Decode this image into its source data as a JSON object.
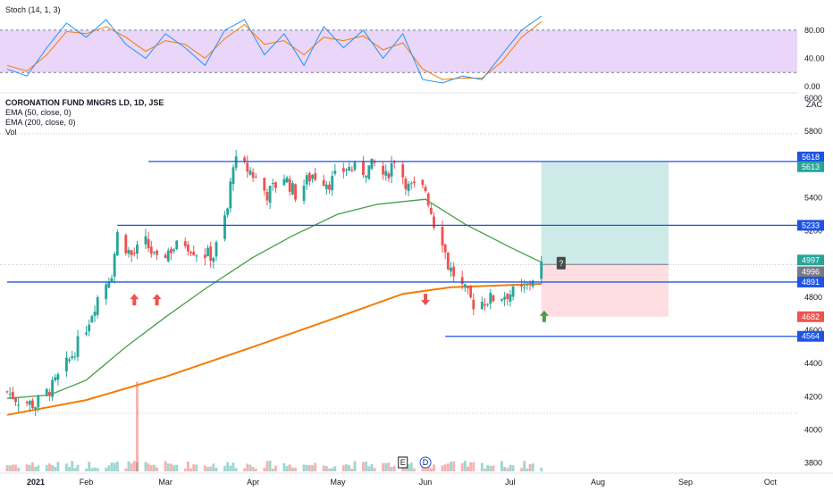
{
  "stoch_panel": {
    "indicator_label": "Stoch (14, 1, 3)",
    "band_top": 80,
    "band_bottom": 20,
    "ticks": [
      "80.00",
      "40.00",
      "0.00"
    ],
    "tick_values": [
      80,
      40,
      0
    ],
    "band_color": "#e1c8f7",
    "k_color": "#2196f3",
    "d_color": "#f57c00"
  },
  "price_panel": {
    "symbol_line": "CORONATION FUND MNGRS LD, 1D, JSE",
    "ema50_label": "EMA (50, close, 0)",
    "ema200_label": "EMA (200, close, 0)",
    "vol_label": "Vol",
    "currency": "ZAC",
    "up_color": "#26a69a",
    "down_color": "#ef5350",
    "ema50_color": "#43a047",
    "ema200_color": "#f57c00",
    "level_color": "#1e53e5",
    "right_tags": [
      {
        "text": "5618",
        "value": 5618,
        "color": "#1e53e5"
      },
      {
        "text": "5613",
        "value": 5613,
        "color": "#26a69a"
      },
      {
        "text": "5233",
        "value": 5233,
        "color": "#1e53e5"
      },
      {
        "text": "4997",
        "value": 4997,
        "color": "#26a69a"
      },
      {
        "text": "4996",
        "value": 4996,
        "color": "#787b86"
      },
      {
        "text": "4891",
        "value": 4891,
        "color": "#1e53e5"
      },
      {
        "text": "4682",
        "value": 4682,
        "color": "#ef5350"
      },
      {
        "text": "4564",
        "value": 4564,
        "color": "#1e53e5"
      }
    ],
    "badge_text": "?",
    "events": [
      "E",
      "D"
    ]
  },
  "chart_data": {
    "type": "candlestick",
    "price_axis": {
      "ticks": [
        "6000",
        "5800",
        "5400",
        "5200",
        "4800",
        "4600",
        "4400",
        "4200",
        "4000",
        "3800"
      ],
      "tick_values": [
        6000,
        5800,
        5400,
        5200,
        4800,
        4600,
        4400,
        4200,
        4000,
        3800
      ],
      "range": [
        3750,
        6010
      ]
    },
    "time_axis": {
      "labels": [
        "2021",
        "Feb",
        "Mar",
        "Apr",
        "May",
        "Jun",
        "Jul",
        "Aug",
        "Sep",
        "Oct"
      ],
      "range": [
        "2021-01-04",
        "2021-10-08"
      ]
    },
    "horizontal_levels": [
      {
        "value": 5618,
        "from": "2021-02-23"
      },
      {
        "value": 5233,
        "from": "2021-02-12"
      },
      {
        "value": 4891,
        "from": "2021-01-04"
      },
      {
        "value": 4564,
        "from": "2021-06-08"
      }
    ],
    "position": {
      "entry": 4997,
      "target": 5613,
      "stop": 4682,
      "start": "2021-07-12",
      "end": "2021-08-26"
    },
    "markers": [
      {
        "date": "2021-02-18",
        "direction": "up",
        "color": "#ef5350"
      },
      {
        "date": "2021-02-26",
        "direction": "up",
        "color": "#ef5350"
      },
      {
        "date": "2021-06-01",
        "direction": "down",
        "color": "#ef5350"
      },
      {
        "date": "2021-07-13",
        "direction": "up",
        "color": "#43a047"
      }
    ],
    "volume_spike": {
      "date": "2021-02-19",
      "relative": 1.0
    },
    "path_points": [
      [
        "2021-01-04",
        4230
      ],
      [
        "2021-01-08",
        4180
      ],
      [
        "2021-01-14",
        4150
      ],
      [
        "2021-01-20",
        4260
      ],
      [
        "2021-01-26",
        4420
      ],
      [
        "2021-02-01",
        4620
      ],
      [
        "2021-02-05",
        4800
      ],
      [
        "2021-02-10",
        4950
      ],
      [
        "2021-02-12",
        5180
      ],
      [
        "2021-02-17",
        5050
      ],
      [
        "2021-02-22",
        5130
      ],
      [
        "2021-02-26",
        5010
      ],
      [
        "2021-03-02",
        5080
      ],
      [
        "2021-03-08",
        5130
      ],
      [
        "2021-03-12",
        5070
      ],
      [
        "2021-03-18",
        5050
      ],
      [
        "2021-03-23",
        5330
      ],
      [
        "2021-03-25",
        5620
      ],
      [
        "2021-03-31",
        5560
      ],
      [
        "2021-04-06",
        5420
      ],
      [
        "2021-04-12",
        5530
      ],
      [
        "2021-04-16",
        5420
      ],
      [
        "2021-04-22",
        5540
      ],
      [
        "2021-04-28",
        5490
      ],
      [
        "2021-05-04",
        5580
      ],
      [
        "2021-05-10",
        5560
      ],
      [
        "2021-05-14",
        5600
      ],
      [
        "2021-05-18",
        5520
      ],
      [
        "2021-05-21",
        5640
      ],
      [
        "2021-05-26",
        5460
      ],
      [
        "2021-06-01",
        5450
      ],
      [
        "2021-06-04",
        5250
      ],
      [
        "2021-06-07",
        5150
      ],
      [
        "2021-06-09",
        4990
      ],
      [
        "2021-06-14",
        4860
      ],
      [
        "2021-06-18",
        4760
      ],
      [
        "2021-06-24",
        4790
      ],
      [
        "2021-06-30",
        4820
      ],
      [
        "2021-07-06",
        4840
      ],
      [
        "2021-07-12",
        4997
      ]
    ],
    "ema50": [
      [
        "2021-01-04",
        4190
      ],
      [
        "2021-01-19",
        4210
      ],
      [
        "2021-02-01",
        4300
      ],
      [
        "2021-02-15",
        4500
      ],
      [
        "2021-03-01",
        4680
      ],
      [
        "2021-03-15",
        4850
      ],
      [
        "2021-04-01",
        5040
      ],
      [
        "2021-04-15",
        5170
      ],
      [
        "2021-05-01",
        5300
      ],
      [
        "2021-05-15",
        5360
      ],
      [
        "2021-06-01",
        5390
      ],
      [
        "2021-06-15",
        5240
      ],
      [
        "2021-07-01",
        5100
      ],
      [
        "2021-07-12",
        5010
      ]
    ],
    "ema200": [
      [
        "2021-01-04",
        4090
      ],
      [
        "2021-02-01",
        4180
      ],
      [
        "2021-03-01",
        4320
      ],
      [
        "2021-04-01",
        4500
      ],
      [
        "2021-05-01",
        4680
      ],
      [
        "2021-05-24",
        4820
      ],
      [
        "2021-06-10",
        4860
      ],
      [
        "2021-07-12",
        4880
      ]
    ],
    "stoch_k": [
      [
        "2021-01-04",
        25
      ],
      [
        "2021-01-11",
        15
      ],
      [
        "2021-01-18",
        55
      ],
      [
        "2021-01-25",
        90
      ],
      [
        "2021-02-01",
        70
      ],
      [
        "2021-02-08",
        95
      ],
      [
        "2021-02-15",
        60
      ],
      [
        "2021-02-22",
        40
      ],
      [
        "2021-03-01",
        75
      ],
      [
        "2021-03-08",
        55
      ],
      [
        "2021-03-15",
        30
      ],
      [
        "2021-03-22",
        80
      ],
      [
        "2021-03-29",
        95
      ],
      [
        "2021-04-05",
        45
      ],
      [
        "2021-04-12",
        75
      ],
      [
        "2021-04-19",
        30
      ],
      [
        "2021-04-26",
        85
      ],
      [
        "2021-05-03",
        55
      ],
      [
        "2021-05-10",
        80
      ],
      [
        "2021-05-17",
        40
      ],
      [
        "2021-05-24",
        75
      ],
      [
        "2021-05-31",
        10
      ],
      [
        "2021-06-07",
        5
      ],
      [
        "2021-06-14",
        15
      ],
      [
        "2021-06-21",
        10
      ],
      [
        "2021-06-28",
        45
      ],
      [
        "2021-07-05",
        80
      ],
      [
        "2021-07-12",
        100
      ]
    ],
    "stoch_d": [
      [
        "2021-01-04",
        30
      ],
      [
        "2021-01-11",
        22
      ],
      [
        "2021-01-18",
        45
      ],
      [
        "2021-01-25",
        78
      ],
      [
        "2021-02-01",
        75
      ],
      [
        "2021-02-08",
        85
      ],
      [
        "2021-02-15",
        70
      ],
      [
        "2021-02-22",
        50
      ],
      [
        "2021-03-01",
        65
      ],
      [
        "2021-03-08",
        60
      ],
      [
        "2021-03-15",
        40
      ],
      [
        "2021-03-22",
        68
      ],
      [
        "2021-03-29",
        88
      ],
      [
        "2021-04-05",
        60
      ],
      [
        "2021-04-12",
        65
      ],
      [
        "2021-04-19",
        45
      ],
      [
        "2021-04-26",
        70
      ],
      [
        "2021-05-03",
        65
      ],
      [
        "2021-05-10",
        72
      ],
      [
        "2021-05-17",
        52
      ],
      [
        "2021-05-24",
        62
      ],
      [
        "2021-05-31",
        25
      ],
      [
        "2021-06-07",
        10
      ],
      [
        "2021-06-14",
        12
      ],
      [
        "2021-06-21",
        12
      ],
      [
        "2021-06-28",
        35
      ],
      [
        "2021-07-05",
        70
      ],
      [
        "2021-07-12",
        92
      ]
    ]
  }
}
